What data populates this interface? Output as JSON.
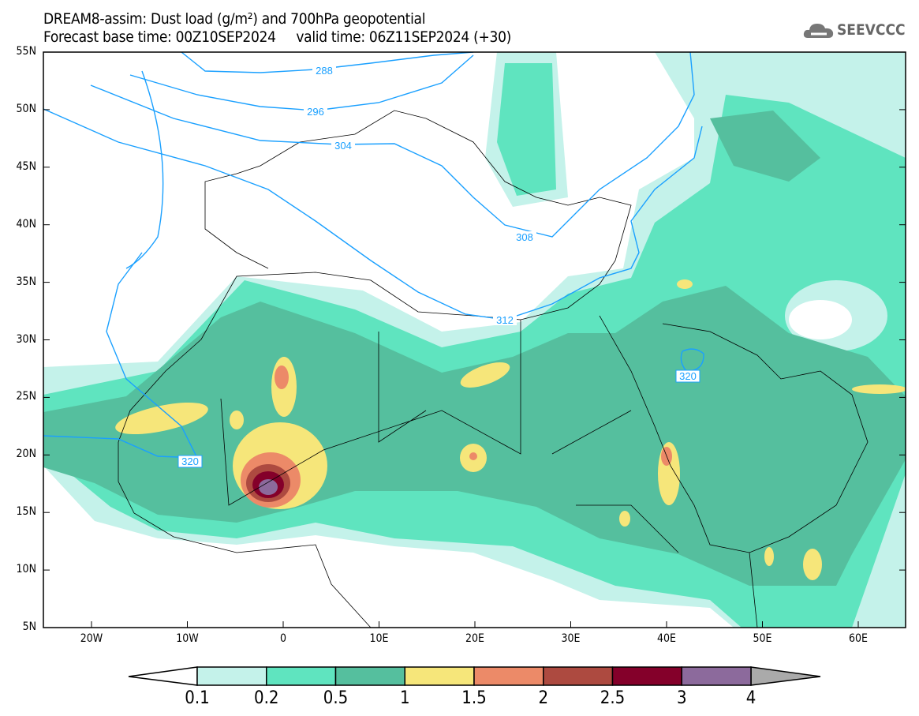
{
  "header": {
    "title": "DREAM8-assim: Dust load (g/m²) and 700hPa geopotential",
    "base_time": "Forecast base time: 00Z10SEP2024",
    "valid_time": "valid time: 06Z11SEP2024 (+30)",
    "logo_text": "SEEVCCC"
  },
  "axes": {
    "lat_labels": [
      "55N",
      "50N",
      "45N",
      "40N",
      "35N",
      "30N",
      "25N",
      "20N",
      "15N",
      "10N",
      "5N"
    ],
    "lon_labels": [
      "20W",
      "10W",
      "0",
      "10E",
      "20E",
      "30E",
      "40E",
      "50E",
      "60E"
    ]
  },
  "contour_labels": [
    "288",
    "296",
    "304",
    "308",
    "312",
    "320",
    "320"
  ],
  "colorbar": {
    "labels": [
      "0.1",
      "0.2",
      "0.5",
      "1",
      "1.5",
      "2",
      "2.5",
      "3",
      "4"
    ],
    "colors": [
      "#c4f2ea",
      "#5fe4bf",
      "#55bf9e",
      "#f6e67a",
      "#ec8a68",
      "#ad4a40",
      "#84002a",
      "#8c6a9c"
    ],
    "over_color": "#aaaaaa",
    "under_color": "#ffffff"
  }
}
